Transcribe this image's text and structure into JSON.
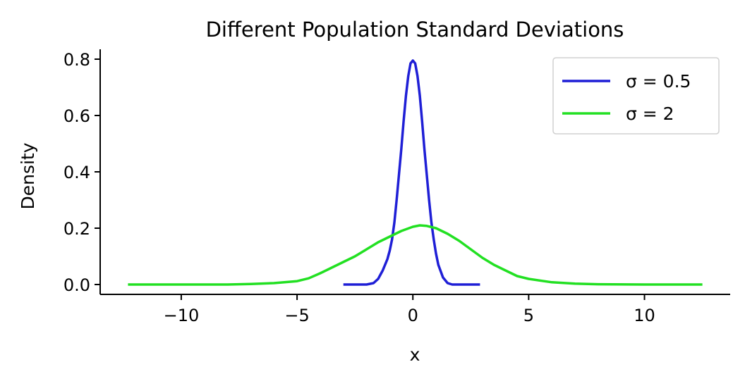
{
  "chart_data": {
    "type": "line",
    "title": "Different Population Standard Deviations",
    "xlabel": "x",
    "ylabel": "Density",
    "xlim": [
      -13.5,
      13.7
    ],
    "ylim": [
      -0.035,
      0.835
    ],
    "xticks": [
      -10,
      -5,
      0,
      5,
      10
    ],
    "xtick_labels": [
      "−10",
      "−5",
      "0",
      "5",
      "10"
    ],
    "yticks": [
      0.0,
      0.2,
      0.4,
      0.6,
      0.8
    ],
    "ytick_labels": [
      "0.0",
      "0.2",
      "0.4",
      "0.6",
      "0.8"
    ],
    "grid": false,
    "legend_position": "top-right",
    "series": [
      {
        "name": "σ = 0.5",
        "color": "#1f1fd6",
        "x": [
          -3.0,
          -2.0,
          -1.7,
          -1.5,
          -1.3,
          -1.1,
          -1.0,
          -0.9,
          -0.8,
          -0.7,
          -0.6,
          -0.5,
          -0.4,
          -0.3,
          -0.2,
          -0.1,
          0.0,
          0.1,
          0.2,
          0.3,
          0.4,
          0.5,
          0.6,
          0.7,
          0.8,
          0.9,
          1.0,
          1.1,
          1.3,
          1.5,
          1.7,
          2.0,
          2.9
        ],
        "y": [
          0.0,
          0.0,
          0.005,
          0.02,
          0.05,
          0.09,
          0.12,
          0.16,
          0.22,
          0.3,
          0.39,
          0.48,
          0.58,
          0.67,
          0.74,
          0.785,
          0.795,
          0.785,
          0.74,
          0.67,
          0.58,
          0.48,
          0.39,
          0.3,
          0.22,
          0.16,
          0.11,
          0.07,
          0.025,
          0.005,
          0.0,
          0.0,
          0.0
        ]
      },
      {
        "name": "σ = 2",
        "color": "#22e022",
        "x": [
          -12.3,
          -10.0,
          -8.0,
          -7.0,
          -6.0,
          -5.0,
          -4.5,
          -4.0,
          -3.5,
          -3.0,
          -2.5,
          -2.0,
          -1.5,
          -1.0,
          -0.5,
          0.0,
          0.3,
          0.6,
          1.0,
          1.5,
          2.0,
          2.5,
          3.0,
          3.5,
          4.0,
          4.5,
          5.0,
          6.0,
          7.0,
          8.0,
          10.0,
          12.5
        ],
        "y": [
          0.0,
          0.0,
          0.0,
          0.002,
          0.005,
          0.012,
          0.022,
          0.04,
          0.06,
          0.08,
          0.1,
          0.125,
          0.15,
          0.17,
          0.19,
          0.205,
          0.21,
          0.208,
          0.2,
          0.18,
          0.155,
          0.125,
          0.095,
          0.07,
          0.05,
          0.03,
          0.02,
          0.008,
          0.003,
          0.001,
          0.0,
          0.0
        ]
      }
    ]
  }
}
